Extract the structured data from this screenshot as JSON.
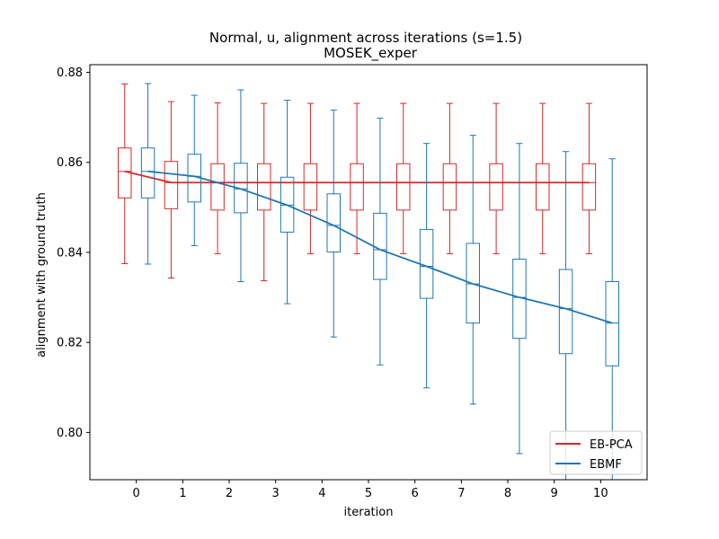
{
  "chart_data": {
    "type": "box",
    "title": "Normal, u, alignment across iterations (s=1.5)",
    "subtitle": "MOSEK_exper",
    "xlabel": "iteration",
    "ylabel": "alignment with ground truth",
    "x": [
      0,
      1,
      2,
      3,
      4,
      5,
      6,
      7,
      8,
      9,
      10
    ],
    "xlim": [
      -1.0,
      11.0
    ],
    "ylim": [
      0.7895,
      0.8817
    ],
    "yticks": [
      0.8,
      0.82,
      0.84,
      0.86,
      0.88
    ],
    "ytick_labels": [
      "0.80",
      "0.82",
      "0.84",
      "0.86",
      "0.88"
    ],
    "xtick_labels": [
      "0",
      "1",
      "2",
      "3",
      "4",
      "5",
      "6",
      "7",
      "8",
      "9",
      "10"
    ],
    "legend_placement": "lower-right",
    "series": [
      {
        "name": "EB-PCA",
        "color": "#d62728",
        "offset": -0.25,
        "box_stats": [
          {
            "whislo": 0.8375,
            "q1": 0.8521,
            "med": 0.858,
            "q3": 0.8632,
            "whishi": 0.8774
          },
          {
            "whislo": 0.8343,
            "q1": 0.8497,
            "med": 0.8555,
            "q3": 0.8602,
            "whishi": 0.8735
          },
          {
            "whislo": 0.8397,
            "q1": 0.8494,
            "med": 0.8555,
            "q3": 0.8597,
            "whishi": 0.8732
          },
          {
            "whislo": 0.8337,
            "q1": 0.8494,
            "med": 0.8555,
            "q3": 0.8597,
            "whishi": 0.8731
          },
          {
            "whislo": 0.8397,
            "q1": 0.8494,
            "med": 0.8555,
            "q3": 0.8597,
            "whishi": 0.8731
          },
          {
            "whislo": 0.8397,
            "q1": 0.8494,
            "med": 0.8555,
            "q3": 0.8597,
            "whishi": 0.8731
          },
          {
            "whislo": 0.8397,
            "q1": 0.8494,
            "med": 0.8555,
            "q3": 0.8597,
            "whishi": 0.8731
          },
          {
            "whislo": 0.8397,
            "q1": 0.8494,
            "med": 0.8555,
            "q3": 0.8597,
            "whishi": 0.8731
          },
          {
            "whislo": 0.8397,
            "q1": 0.8494,
            "med": 0.8555,
            "q3": 0.8597,
            "whishi": 0.8731
          },
          {
            "whislo": 0.8397,
            "q1": 0.8494,
            "med": 0.8555,
            "q3": 0.8597,
            "whishi": 0.8731
          },
          {
            "whislo": 0.8397,
            "q1": 0.8494,
            "med": 0.8555,
            "q3": 0.8597,
            "whishi": 0.8731
          }
        ],
        "medians": [
          0.858,
          0.8555,
          0.8555,
          0.8555,
          0.8555,
          0.8555,
          0.8555,
          0.8555,
          0.8555,
          0.8555,
          0.8555
        ]
      },
      {
        "name": "EBMF",
        "color": "#1f77b4",
        "offset": 0.25,
        "box_stats": [
          {
            "whislo": 0.8374,
            "q1": 0.8521,
            "med": 0.858,
            "q3": 0.8632,
            "whishi": 0.8775
          },
          {
            "whislo": 0.8415,
            "q1": 0.8512,
            "med": 0.8569,
            "q3": 0.8618,
            "whishi": 0.8749
          },
          {
            "whislo": 0.8335,
            "q1": 0.8488,
            "med": 0.8541,
            "q3": 0.8598,
            "whishi": 0.8761
          },
          {
            "whislo": 0.8286,
            "q1": 0.8445,
            "med": 0.8505,
            "q3": 0.8567,
            "whishi": 0.8738
          },
          {
            "whislo": 0.8212,
            "q1": 0.8401,
            "med": 0.846,
            "q3": 0.853,
            "whishi": 0.8716
          },
          {
            "whislo": 0.815,
            "q1": 0.834,
            "med": 0.8406,
            "q3": 0.8487,
            "whishi": 0.8698
          },
          {
            "whislo": 0.8099,
            "q1": 0.8298,
            "med": 0.8369,
            "q3": 0.8451,
            "whishi": 0.8642
          },
          {
            "whislo": 0.8063,
            "q1": 0.8243,
            "med": 0.833,
            "q3": 0.842,
            "whishi": 0.866
          },
          {
            "whislo": 0.7953,
            "q1": 0.8209,
            "med": 0.83,
            "q3": 0.8385,
            "whishi": 0.8642
          },
          {
            "whislo": 0.7895,
            "q1": 0.8175,
            "med": 0.8275,
            "q3": 0.8362,
            "whishi": 0.8624
          },
          {
            "whislo": 0.7895,
            "q1": 0.8148,
            "med": 0.8243,
            "q3": 0.8335,
            "whishi": 0.8608
          }
        ],
        "medians": [
          0.858,
          0.8569,
          0.8541,
          0.8505,
          0.846,
          0.8406,
          0.8369,
          0.833,
          0.83,
          0.8275,
          0.8243
        ]
      }
    ]
  }
}
